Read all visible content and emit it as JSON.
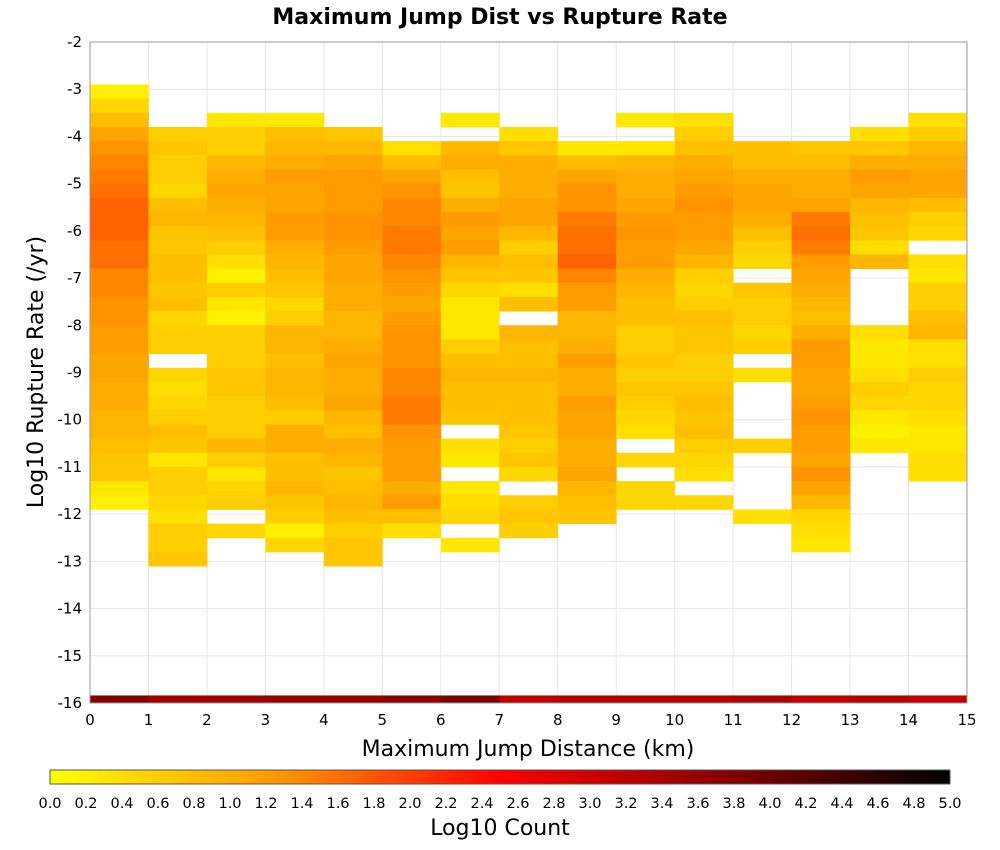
{
  "chart_data": {
    "type": "heatmap",
    "title": "Maximum Jump Dist vs Rupture Rate",
    "xlabel": "Maximum Jump Distance (km)",
    "ylabel": "Log10 Rupture Rate (/yr)",
    "xlim": [
      0,
      15
    ],
    "ylim": [
      -16,
      -2
    ],
    "x_ticks": [
      "0",
      "1",
      "2",
      "3",
      "4",
      "5",
      "6",
      "7",
      "8",
      "9",
      "10",
      "11",
      "12",
      "13",
      "14",
      "15"
    ],
    "y_ticks": [
      "-2",
      "-3",
      "-4",
      "-5",
      "-6",
      "-7",
      "-8",
      "-9",
      "-10",
      "-11",
      "-12",
      "-13",
      "-14",
      "-15",
      "-16"
    ],
    "grid": true,
    "x_bin_width": 1,
    "y_bin_height": 0.3,
    "colorbar": {
      "label": "Log10 Count",
      "range": [
        0,
        5
      ],
      "ticks": [
        "0.0",
        "0.2",
        "0.4",
        "0.6",
        "0.8",
        "1.0",
        "1.2",
        "1.4",
        "1.6",
        "1.8",
        "2.0",
        "2.2",
        "2.4",
        "2.6",
        "2.8",
        "3.0",
        "3.2",
        "3.4",
        "3.6",
        "3.8",
        "4.0",
        "4.2",
        "4.4",
        "4.6",
        "4.8",
        "5.0"
      ],
      "colors": [
        "#ffff00",
        "#ff9900",
        "#ff0000",
        "#880000",
        "#000000"
      ]
    },
    "bottom_row": {
      "y": -16,
      "values": [
        3.8,
        3.5,
        3.5,
        3.6,
        3.6,
        3.7,
        3.9,
        3.2,
        3.3,
        3.3,
        3.3,
        3.4,
        3.2,
        3.3,
        3.1
      ]
    },
    "columns": [
      {
        "x": 0,
        "y_start": -2.9,
        "values": [
          0.2,
          0.5,
          0.8,
          1.1,
          1.3,
          1.4,
          1.5,
          1.6,
          1.7,
          1.7,
          1.7,
          1.6,
          1.6,
          1.4,
          1.4,
          1.3,
          1.3,
          1.2,
          1.2,
          1.1,
          1.1,
          1.0,
          1.0,
          0.9,
          0.9,
          0.8,
          0.7,
          0.7,
          0.3,
          0.2
        ]
      },
      {
        "x": 1,
        "y_start": -3.8,
        "values": [
          0.6,
          0.7,
          0.6,
          0.6,
          0.5,
          0.8,
          0.9,
          0.7,
          0.7,
          0.8,
          0.8,
          0.7,
          0.8,
          0.5,
          0.6,
          0.6,
          null,
          0.5,
          0.4,
          0.5,
          0.6,
          0.8,
          0.7,
          0.3,
          0.6,
          0.6,
          0.5,
          0.4,
          0.6,
          0.6,
          0.7
        ]
      },
      {
        "x": 2,
        "y_start": -3.5,
        "values": [
          0.3,
          0.6,
          0.6,
          0.9,
          1.0,
          1.1,
          1.0,
          0.9,
          0.8,
          0.6,
          0.4,
          0.2,
          0.6,
          0.3,
          0.2,
          0.6,
          0.6,
          0.6,
          0.7,
          0.7,
          0.6,
          0.6,
          0.6,
          0.9,
          0.6,
          0.3,
          0.5,
          0.6,
          null,
          0.5
        ]
      },
      {
        "x": 3,
        "y_start": -3.5,
        "values": [
          0.3,
          0.8,
          0.9,
          1.0,
          1.2,
          1.1,
          1.1,
          1.2,
          1.2,
          1.0,
          0.9,
          0.8,
          0.7,
          0.5,
          0.6,
          0.9,
          0.9,
          0.8,
          0.9,
          0.9,
          0.8,
          0.6,
          1.0,
          1.0,
          0.8,
          0.8,
          0.9,
          0.7,
          0.6,
          0.2,
          0.5
        ]
      },
      {
        "x": 4,
        "y_start": -3.8,
        "values": [
          0.7,
          0.9,
          1.1,
          1.2,
          1.2,
          1.2,
          1.3,
          1.3,
          1.2,
          1.1,
          1.1,
          1.0,
          1.0,
          0.9,
          0.9,
          1.0,
          1.1,
          1.0,
          1.0,
          1.1,
          0.9,
          0.8,
          1.0,
          0.9,
          0.7,
          0.8,
          0.9,
          0.8,
          0.6,
          0.7,
          0.7
        ]
      },
      {
        "x": 5,
        "y_start": -4.1,
        "values": [
          0.4,
          0.8,
          1.1,
          1.3,
          1.4,
          1.4,
          1.5,
          1.5,
          1.4,
          1.3,
          1.2,
          1.1,
          1.2,
          1.3,
          1.3,
          1.3,
          1.4,
          1.4,
          1.5,
          1.5,
          1.3,
          1.2,
          1.2,
          1.2,
          1.0,
          1.2,
          0.8,
          0.4
        ]
      },
      {
        "x": 6,
        "y_start": -3.5,
        "values": [
          0.3,
          null,
          0.9,
          1.0,
          0.8,
          0.7,
          1.0,
          1.2,
          1.1,
          1.2,
          0.9,
          0.7,
          0.5,
          0.3,
          0.3,
          0.3,
          0.6,
          0.8,
          0.9,
          0.8,
          0.8,
          0.7,
          null,
          0.4,
          0.3,
          null,
          0.3,
          0.4,
          0.5,
          null,
          0.3
        ]
      },
      {
        "x": 7,
        "y_start": -3.8,
        "values": [
          0.4,
          0.7,
          1.0,
          1.0,
          1.0,
          1.1,
          1.1,
          0.9,
          0.6,
          0.8,
          0.7,
          0.4,
          0.8,
          null,
          0.9,
          0.8,
          0.8,
          0.9,
          0.8,
          0.8,
          0.8,
          0.7,
          0.6,
          0.7,
          0.5,
          null,
          0.6,
          0.7,
          0.6
        ]
      },
      {
        "x": 8,
        "y_start": -4.1,
        "values": [
          0.3,
          0.8,
          1.1,
          1.3,
          1.3,
          1.5,
          1.6,
          1.6,
          1.7,
          1.4,
          1.2,
          1.2,
          0.9,
          0.9,
          1.0,
          1.2,
          1.0,
          1.0,
          1.2,
          1.1,
          1.1,
          1.0,
          1.0,
          1.1,
          0.9,
          0.8,
          0.7
        ]
      },
      {
        "x": 9,
        "y_start": -3.5,
        "values": [
          0.3,
          null,
          0.3,
          0.9,
          1.0,
          1.0,
          1.1,
          1.2,
          1.3,
          1.2,
          1.2,
          1.0,
          0.9,
          0.8,
          0.8,
          0.6,
          0.6,
          0.7,
          0.6,
          0.7,
          0.6,
          0.5,
          0.4,
          null,
          0.5,
          null,
          0.5,
          0.5
        ]
      },
      {
        "x": 10,
        "y_start": -3.5,
        "values": [
          0.4,
          0.6,
          0.8,
          1.0,
          1.1,
          1.2,
          1.3,
          1.2,
          1.2,
          1.1,
          0.9,
          0.6,
          0.5,
          0.6,
          0.8,
          0.7,
          0.7,
          0.6,
          0.6,
          0.7,
          0.8,
          0.7,
          0.8,
          0.6,
          0.5,
          0.4,
          null,
          0.5
        ]
      },
      {
        "x": 11,
        "y_start": -4.1,
        "values": [
          0.8,
          0.8,
          1.0,
          1.1,
          1.1,
          1.0,
          0.8,
          0.6,
          0.5,
          null,
          0.7,
          0.6,
          0.6,
          0.5,
          0.6,
          null,
          0.4,
          null,
          null,
          null,
          null,
          0.6,
          null,
          null,
          null,
          null,
          0.4
        ]
      },
      {
        "x": 12,
        "y_start": -4.1,
        "values": [
          0.7,
          0.8,
          1.0,
          1.0,
          1.1,
          1.5,
          1.6,
          1.5,
          1.2,
          1.1,
          1.0,
          0.9,
          0.8,
          1.0,
          1.2,
          1.2,
          1.1,
          1.1,
          1.2,
          1.3,
          1.2,
          1.2,
          1.1,
          1.3,
          1.1,
          0.9,
          0.5,
          0.4,
          0.3
        ]
      },
      {
        "x": 13,
        "y_start": -3.8,
        "values": [
          0.4,
          0.7,
          1.0,
          1.2,
          1.1,
          0.9,
          0.8,
          0.7,
          0.4,
          0.9,
          null,
          null,
          null,
          null,
          0.4,
          0.3,
          0.3,
          0.4,
          0.6,
          0.5,
          0.3,
          0.2,
          0.3
        ]
      },
      {
        "x": 14,
        "y_start": -3.5,
        "values": [
          0.4,
          0.6,
          0.9,
          1.0,
          1.1,
          1.1,
          0.8,
          0.6,
          0.5,
          null,
          0.4,
          0.3,
          0.6,
          0.6,
          0.8,
          0.9,
          0.4,
          0.4,
          0.6,
          0.5,
          0.5,
          0.4,
          0.3,
          0.3,
          0.4,
          0.4
        ]
      }
    ]
  }
}
